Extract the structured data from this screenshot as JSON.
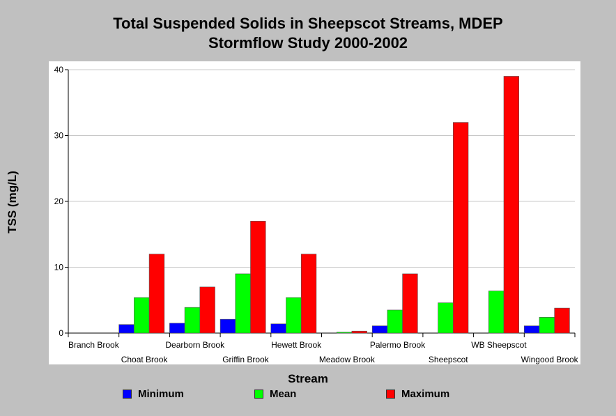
{
  "title_line1": "Total Suspended Solids in Sheepscot Streams, MDEP",
  "title_line2": "Stormflow Study 2000-2002",
  "chart_data": {
    "type": "bar",
    "title": "Total Suspended Solids in Sheepscot Streams, MDEP Stormflow Study 2000-2002",
    "xlabel": "Stream",
    "ylabel": "TSS (mg/L)",
    "ylim": [
      0,
      40
    ],
    "yticks": [
      0,
      10,
      20,
      30,
      40
    ],
    "grid": true,
    "legend_position": "bottom",
    "categories": [
      "Branch Brook",
      "Choat Brook",
      "Dearborn Brook",
      "Griffin Brook",
      "Hewett Brook",
      "Meadow Brook",
      "Palermo Brook",
      "Sheepscot",
      "WB Sheepscot",
      "Wingood Brook"
    ],
    "series": [
      {
        "name": "Minimum",
        "color": "#0000ff",
        "values": [
          0,
          1.3,
          1.5,
          2.1,
          1.4,
          0,
          1.1,
          0,
          0,
          1.1
        ]
      },
      {
        "name": "Mean",
        "color": "#00ff00",
        "values": [
          0,
          5.4,
          3.9,
          9.0,
          5.4,
          0.15,
          3.5,
          4.6,
          6.4,
          2.4
        ]
      },
      {
        "name": "Maximum",
        "color": "#ff0000",
        "values": [
          0,
          12,
          7,
          17,
          12,
          0.3,
          9,
          32,
          39,
          3.8
        ]
      }
    ]
  }
}
